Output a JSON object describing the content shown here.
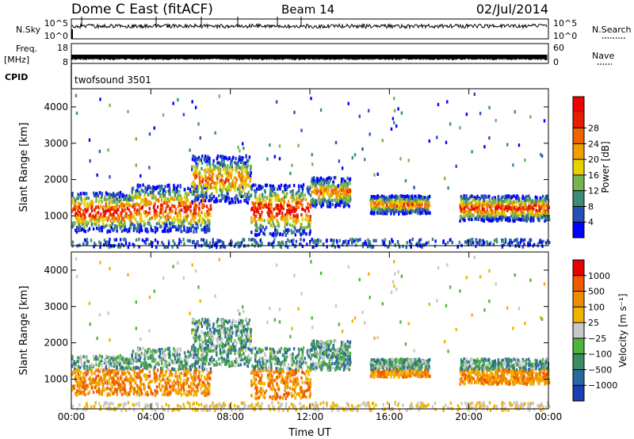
{
  "header": {
    "station": "Dome C East (fitACF)",
    "beam": "Beam 14",
    "date": "02/Jul/2014"
  },
  "top_panels": {
    "nsky_label": "N.Sky",
    "nsky_ticks": [
      "10^5",
      "10^0"
    ],
    "nsearch_label": "N.Search",
    "nsearch_ticks": [
      "10^5",
      "10^0"
    ],
    "freq_label": "Freq.",
    "freq_unit": "[MHz]",
    "freq_ticks": [
      "18",
      "8"
    ],
    "nave_label": "Nave",
    "nave_ticks": [
      "60",
      "0"
    ],
    "cpid_label": "CPID",
    "cpid_value": "twofsound 3501"
  },
  "colors": {
    "power_scale": [
      "#0000ff",
      "#2850b4",
      "#3c8c78",
      "#78b450",
      "#e6d200",
      "#f0a000",
      "#f06400",
      "#e61e00",
      "#f00000"
    ],
    "velocity_scale": [
      "#1e3cb4",
      "#2868a0",
      "#3c8c64",
      "#50b43c",
      "#c8c8c8",
      "#f0b400",
      "#f08c00",
      "#f05a00",
      "#e60000"
    ]
  },
  "chart_data": [
    {
      "type": "heatmap",
      "panel": "power",
      "ylabel": "Slant Range [km]",
      "ylim": [
        180,
        4500
      ],
      "y_ticks": [
        1000,
        2000,
        3000,
        4000
      ],
      "x_ticks": [
        "00:00",
        "04:00",
        "08:00",
        "12:00",
        "16:00",
        "20:00",
        "00:00"
      ],
      "colorbar": {
        "label": "Power [dB]",
        "range": [
          0,
          32
        ],
        "ticks": [
          "4",
          "8",
          "12",
          "16",
          "20",
          "24",
          "28"
        ]
      },
      "echo_regions": [
        {
          "t_start": "00:00",
          "t_end": "03:00",
          "range_km": [
            600,
            1700
          ],
          "peak_power_db": 30
        },
        {
          "t_start": "03:00",
          "t_end": "07:00",
          "range_km": [
            600,
            1900
          ],
          "peak_power_db": 28
        },
        {
          "t_start": "06:00",
          "t_end": "09:00",
          "range_km": [
            1400,
            2700
          ],
          "peak_power_db": 24
        },
        {
          "t_start": "09:00",
          "t_end": "12:00",
          "range_km": [
            500,
            1900
          ],
          "peak_power_db": 30
        },
        {
          "t_start": "12:00",
          "t_end": "14:00",
          "range_km": [
            1300,
            2100
          ],
          "peak_power_db": 24
        },
        {
          "t_start": "15:00",
          "t_end": "18:00",
          "range_km": [
            1100,
            1600
          ],
          "peak_power_db": 24
        },
        {
          "t_start": "19:30",
          "t_end": "24:00",
          "range_km": [
            900,
            1600
          ],
          "peak_power_db": 28
        }
      ]
    },
    {
      "type": "heatmap",
      "panel": "velocity",
      "ylabel": "Slant Range [km]",
      "ylim": [
        180,
        4500
      ],
      "y_ticks": [
        1000,
        2000,
        3000,
        4000
      ],
      "x_ticks": [
        "00:00",
        "04:00",
        "08:00",
        "12:00",
        "16:00",
        "20:00",
        "00:00"
      ],
      "xlabel": "Time UT",
      "colorbar": {
        "label": "Velocity [m s⁻¹]",
        "ticks": [
          "1000",
          "500",
          "100",
          "25",
          "−25",
          "−100",
          "−500",
          "−1000"
        ]
      }
    }
  ]
}
